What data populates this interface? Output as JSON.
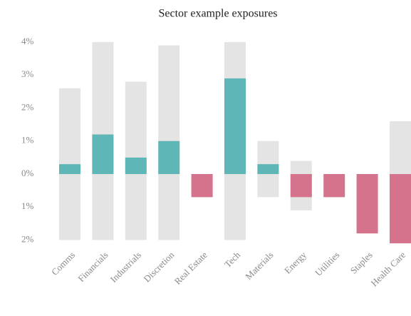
{
  "chart_data": {
    "type": "range_bar",
    "title": "Sector example exposures",
    "categories": [
      "Comms",
      "Financials",
      "Industrials",
      "Discretion",
      "Real Estate",
      "Tech",
      "Materials",
      "Energy",
      "Utilities",
      "Staples",
      "Health Care"
    ],
    "values": [
      0.3,
      1.2,
      0.5,
      1.0,
      -0.7,
      2.9,
      0.3,
      -0.7,
      -0.7,
      -1.8,
      -2.1
    ],
    "positive_color": "#5fb6b6",
    "negative_color": "#d4738b",
    "bands": {
      "color": "#e4e4e4",
      "low": [
        -2,
        -2,
        -2,
        -2,
        null,
        -2,
        -0.7,
        -1.1,
        null,
        null,
        -2
      ],
      "high": [
        2.6,
        4,
        2.8,
        3.9,
        null,
        4,
        1.0,
        0.4,
        null,
        null,
        1.6
      ]
    },
    "ylim": [
      -2,
      4
    ],
    "yticks": [
      {
        "value": 4,
        "label": "4%"
      },
      {
        "value": 3,
        "label": "3%"
      },
      {
        "value": 2,
        "label": "2%"
      },
      {
        "value": 1,
        "label": "1%"
      },
      {
        "value": 0,
        "label": "0%"
      },
      {
        "value": -1,
        "label": "1%"
      },
      {
        "value": -2,
        "label": "2%"
      }
    ],
    "grid": false
  }
}
